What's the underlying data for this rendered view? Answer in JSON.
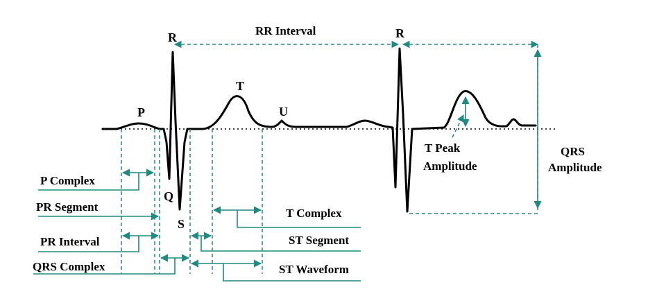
{
  "waves": {
    "p": "P",
    "q": "Q",
    "r1": "R",
    "s": "S",
    "t": "T",
    "u": "U",
    "r2": "R"
  },
  "measurements": {
    "rr_interval": "RR Interval",
    "t_peak_amplitude_line1": "T Peak",
    "t_peak_amplitude_line2": "Amplitude",
    "qrs_amplitude_line1": "QRS",
    "qrs_amplitude_line2": "Amplitude"
  },
  "intervals_left": {
    "p_complex": "P Complex",
    "pr_segment": "PR Segment",
    "pr_interval": "PR Interval",
    "qrs_complex": "QRS Complex"
  },
  "intervals_right": {
    "t_complex": "T Complex",
    "st_segment": "ST Segment",
    "st_waveform": "ST Waveform"
  },
  "colors": {
    "annotation": "#1f8a80",
    "trace": "#000000"
  }
}
